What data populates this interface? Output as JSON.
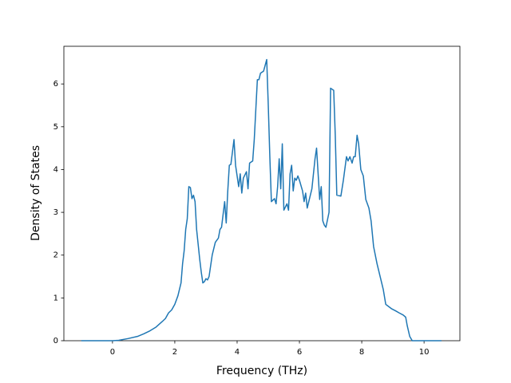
{
  "chart_data": {
    "type": "line",
    "x_label": "Frequency (THz)",
    "y_label": "Density of States",
    "xlim": [
      -1.56,
      11.15
    ],
    "ylim": [
      0,
      6.88
    ],
    "xticks": [
      0,
      2,
      4,
      6,
      8,
      10
    ],
    "yticks": [
      0,
      1,
      2,
      3,
      4,
      5,
      6
    ],
    "series": [
      {
        "color": "#1f77b4",
        "x": [
          -1.0,
          0,
          0.2,
          0.5,
          0.8,
          1.0,
          1.2,
          1.4,
          1.6,
          1.7,
          1.8,
          1.9,
          2.0,
          2.1,
          2.2,
          2.25,
          2.3,
          2.35,
          2.4,
          2.45,
          2.5,
          2.55,
          2.6,
          2.65,
          2.7,
          2.8,
          2.85,
          2.9,
          2.95,
          3.0,
          3.05,
          3.1,
          3.2,
          3.3,
          3.4,
          3.45,
          3.5,
          3.6,
          3.65,
          3.7,
          3.75,
          3.8,
          3.9,
          3.95,
          4.05,
          4.1,
          4.15,
          4.2,
          4.3,
          4.35,
          4.4,
          4.5,
          4.55,
          4.6,
          4.65,
          4.7,
          4.75,
          4.85,
          4.95,
          5.0,
          5.05,
          5.1,
          5.2,
          5.25,
          5.3,
          5.35,
          5.4,
          5.45,
          5.5,
          5.6,
          5.65,
          5.7,
          5.75,
          5.8,
          5.85,
          5.9,
          5.95,
          6.0,
          6.1,
          6.15,
          6.2,
          6.25,
          6.4,
          6.5,
          6.55,
          6.6,
          6.65,
          6.7,
          6.75,
          6.8,
          6.85,
          6.95,
          7.0,
          7.1,
          7.15,
          7.2,
          7.33,
          7.41,
          7.51,
          7.56,
          7.62,
          7.69,
          7.74,
          7.79,
          7.85,
          7.9,
          7.97,
          8.05,
          8.13,
          8.23,
          8.3,
          8.38,
          8.49,
          8.59,
          8.69,
          8.77,
          8.95,
          9.08,
          9.2,
          9.33,
          9.41,
          9.46,
          9.54,
          9.62,
          10.56
        ],
        "values": [
          0,
          0,
          0.01,
          0.05,
          0.1,
          0.16,
          0.23,
          0.32,
          0.45,
          0.52,
          0.65,
          0.72,
          0.85,
          1.05,
          1.35,
          1.8,
          2.1,
          2.6,
          2.85,
          3.6,
          3.58,
          3.32,
          3.4,
          3.25,
          2.6,
          1.9,
          1.6,
          1.35,
          1.38,
          1.45,
          1.42,
          1.5,
          2.0,
          2.3,
          2.4,
          2.6,
          2.65,
          3.25,
          2.75,
          3.5,
          4.1,
          4.12,
          4.7,
          4.1,
          3.6,
          3.9,
          3.45,
          3.8,
          3.95,
          3.55,
          4.15,
          4.2,
          4.7,
          5.4,
          6.1,
          6.1,
          6.25,
          6.3,
          6.57,
          5.5,
          4.3,
          3.25,
          3.32,
          3.2,
          3.6,
          4.25,
          3.55,
          4.6,
          3.05,
          3.2,
          3.05,
          3.9,
          4.1,
          3.5,
          3.8,
          3.75,
          3.85,
          3.75,
          3.5,
          3.25,
          3.45,
          3.1,
          3.55,
          4.25,
          4.5,
          3.9,
          3.3,
          3.6,
          2.8,
          2.7,
          2.65,
          3.0,
          5.9,
          5.85,
          4.8,
          3.4,
          3.38,
          3.75,
          4.3,
          4.2,
          4.3,
          4.15,
          4.3,
          4.3,
          4.8,
          4.6,
          4.0,
          3.85,
          3.3,
          3.1,
          2.8,
          2.2,
          1.8,
          1.5,
          1.2,
          0.85,
          0.75,
          0.7,
          0.65,
          0.6,
          0.55,
          0.35,
          0.1,
          0,
          0
        ]
      }
    ]
  }
}
